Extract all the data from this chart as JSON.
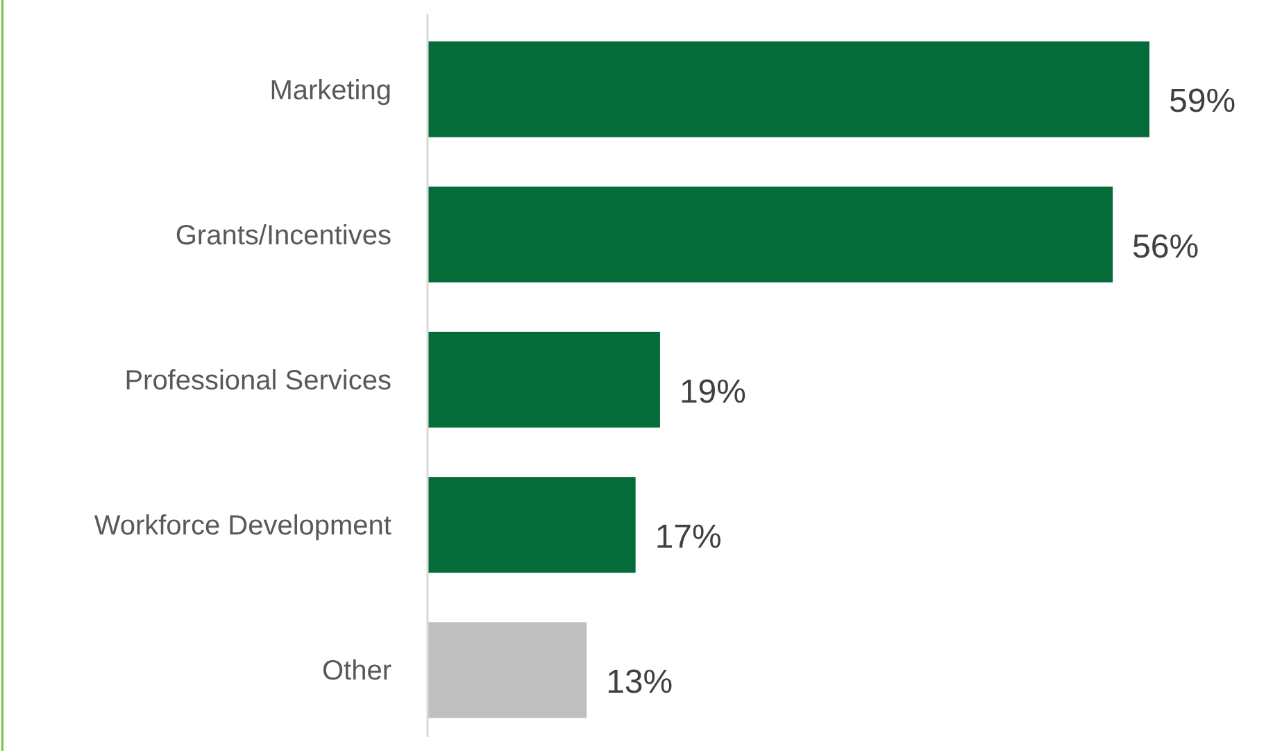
{
  "chart_data": {
    "type": "bar",
    "orientation": "horizontal",
    "categories": [
      "Marketing",
      "Grants/Incentives",
      "Professional Services",
      "Workforce Development",
      "Other"
    ],
    "values": [
      59,
      56,
      19,
      17,
      13
    ],
    "colors": [
      "#056b39",
      "#056b39",
      "#056b39",
      "#056b39",
      "#bfbfbf"
    ],
    "value_labels": [
      "59%",
      "56%",
      "19%",
      "17%",
      "13%"
    ]
  }
}
